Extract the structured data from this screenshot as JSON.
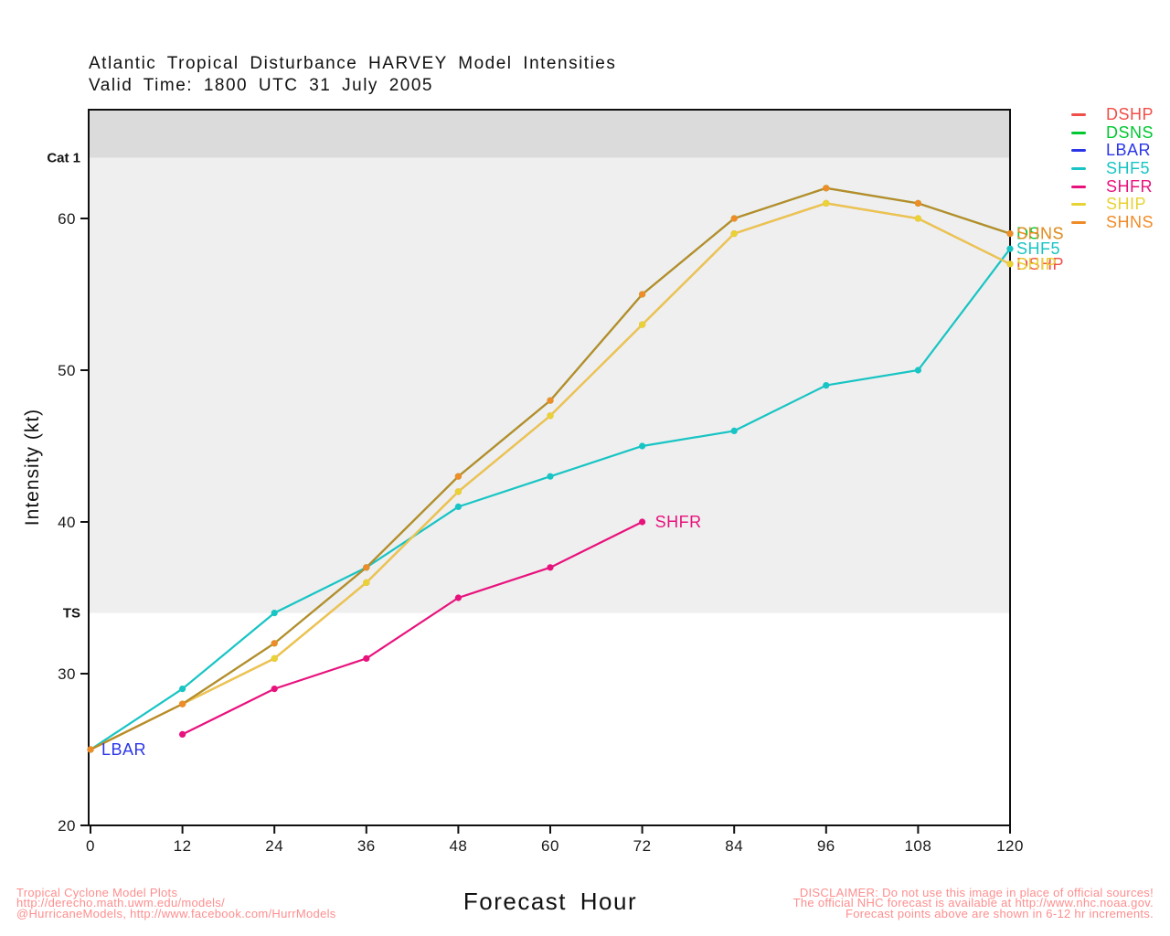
{
  "header": {
    "title": "Atlantic Tropical Disturbance HARVEY Model Intensities",
    "subtitle": "Valid Time: 1800 UTC 31 July 2005"
  },
  "legend": {
    "items": [
      {
        "label": "DSHP",
        "color": "#F04E48"
      },
      {
        "label": "DSNS",
        "color": "#00C832"
      },
      {
        "label": "LBAR",
        "color": "#2B35E8"
      },
      {
        "label": "SHF5",
        "color": "#18C4C4"
      },
      {
        "label": "SHFR",
        "color": "#E8127D"
      },
      {
        "label": "SHIP",
        "color": "#E8D234"
      },
      {
        "label": "SHNS",
        "color": "#F08C28"
      }
    ]
  },
  "axes": {
    "x_label": "Forecast Hour",
    "y_label": "Intensity (kt)",
    "x_ticks": [
      0,
      12,
      24,
      36,
      48,
      60,
      72,
      84,
      96,
      108,
      120
    ],
    "y_ticks": [
      20,
      30,
      40,
      50,
      60
    ]
  },
  "bands": {
    "cat1_label": "Cat 1",
    "ts_label": "TS",
    "cat1_threshold_kt": 64,
    "ts_threshold_kt": 34,
    "cat1_fill": "#DBDBDB",
    "ts_fill": "#EFEFEF"
  },
  "chart_data": {
    "type": "line",
    "title": "Atlantic Tropical Disturbance HARVEY Model Intensities",
    "subtitle": "Valid Time: 1800 UTC 31 July 2005",
    "xlabel": "Forecast Hour",
    "ylabel": "Intensity (kt)",
    "x": [
      0,
      12,
      24,
      36,
      48,
      60,
      72,
      84,
      96,
      108,
      120
    ],
    "xlim": [
      0,
      120
    ],
    "ylim": [
      20,
      67.2
    ],
    "grid": false,
    "legend_position": "top-right-outside",
    "series": [
      {
        "name": "DSHP",
        "color": "#F04E48",
        "line_color": "#F04E48",
        "values": [
          25,
          28,
          31,
          36,
          42,
          47,
          53,
          59,
          61,
          60,
          57
        ]
      },
      {
        "name": "DSNS",
        "color": "#00C832",
        "line_color": "#00C832",
        "values": [
          25,
          28,
          32,
          37,
          43,
          48,
          55,
          60,
          62,
          61,
          59
        ]
      },
      {
        "name": "LBAR",
        "color": "#2B35E8",
        "line_color": "#2B35E8",
        "values": [
          25,
          null,
          null,
          null,
          null,
          null,
          null,
          null,
          null,
          null,
          null
        ]
      },
      {
        "name": "SHF5",
        "color": "#18C4C4",
        "line_color": "#18C4C4",
        "values": [
          25,
          29,
          34,
          37,
          41,
          43,
          45,
          46,
          49,
          50,
          58
        ]
      },
      {
        "name": "SHFR",
        "color": "#E8127D",
        "line_color": "#E8127D",
        "values": [
          null,
          26,
          29,
          31,
          35,
          37,
          40,
          null,
          null,
          null,
          null
        ]
      },
      {
        "name": "SHIP",
        "color": "#E8D234",
        "line_color": "#EAC74C",
        "values": [
          25,
          28,
          31,
          36,
          42,
          47,
          53,
          59,
          61,
          60,
          57
        ]
      },
      {
        "name": "SHNS",
        "color": "#F08C28",
        "line_color": "#BC8A2A",
        "values": [
          25,
          28,
          32,
          37,
          43,
          48,
          55,
          60,
          62,
          61,
          59
        ]
      }
    ],
    "point_labels": [
      {
        "text": "LBAR",
        "color": "#2B35E8",
        "hour": 0,
        "kt": 25,
        "dx": 12
      },
      {
        "text": "SHFR",
        "color": "#E8127D",
        "hour": 72,
        "kt": 40,
        "dx": 14
      }
    ],
    "edge_labels": [
      {
        "text": "DSNS",
        "color": "#00C832",
        "kt": 59
      },
      {
        "text": "SHNS",
        "color": "#F08C28",
        "kt": 59
      },
      {
        "text": "SHF5",
        "color": "#18C4C4",
        "kt": 58
      },
      {
        "text": "DSHP",
        "color": "#F04E48",
        "kt": 57
      },
      {
        "text": "SHIP",
        "color": "#E8D234",
        "kt": 57
      }
    ]
  },
  "footer": {
    "left_lines": [
      "Tropical Cyclone Model Plots",
      "http://derecho.math.uwm.edu/models/",
      "@HurricaneModels, http://www.facebook.com/HurrModels"
    ],
    "right_lines": [
      "DISCLAIMER: Do not use this image in place of official sources!",
      "The official NHC forecast is available at http://www.nhc.noaa.gov.",
      "Forecast points above are shown in 6-12 hr increments."
    ],
    "text_color": "#FF8E8E"
  }
}
